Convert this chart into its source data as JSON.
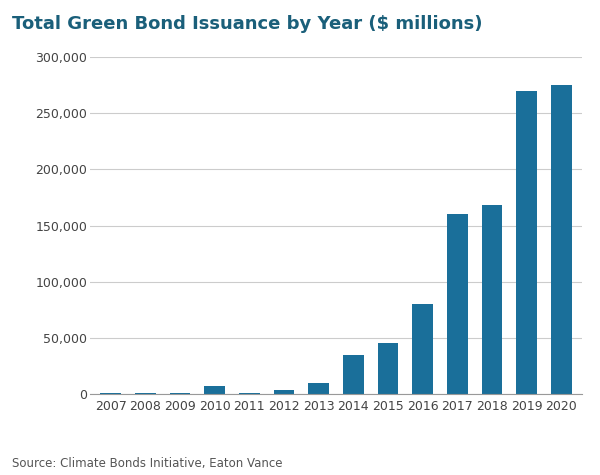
{
  "title": "Total Green Bond Issuance by Year ($ millions)",
  "years": [
    "2007",
    "2008",
    "2009",
    "2010",
    "2011",
    "2012",
    "2013",
    "2014",
    "2015",
    "2016",
    "2017",
    "2018",
    "2019",
    "2020"
  ],
  "values": [
    800,
    1500,
    1000,
    7000,
    1500,
    4000,
    10000,
    35000,
    46000,
    80000,
    160000,
    168000,
    270000,
    275000
  ],
  "bar_color": "#1a6f9a",
  "background_color": "#ffffff",
  "ylim": [
    0,
    300000
  ],
  "yticks": [
    0,
    50000,
    100000,
    150000,
    200000,
    250000,
    300000
  ],
  "source_text": "Source: Climate Bonds Initiative, Eaton Vance",
  "title_fontsize": 13,
  "tick_fontsize": 9,
  "source_fontsize": 8.5
}
